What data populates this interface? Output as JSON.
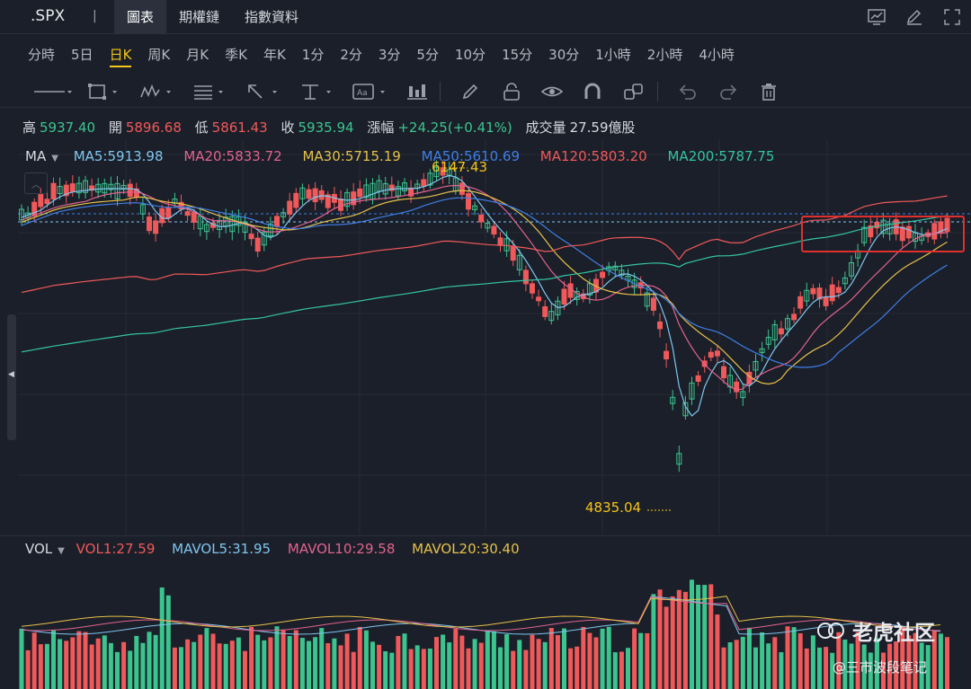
{
  "toolbar": {
    "symbol": ".SPX",
    "separator": "|",
    "tabs": [
      "圖表",
      "期權鏈",
      "指數資料"
    ],
    "active_tab": 0
  },
  "periods": {
    "items": [
      "分時",
      "5日",
      "日K",
      "周K",
      "月K",
      "季K",
      "年K",
      "1分",
      "2分",
      "3分",
      "5分",
      "10分",
      "15分",
      "30分",
      "1小時",
      "2小時",
      "4小時"
    ],
    "active": 2
  },
  "quote": {
    "high_label": "高",
    "high": "5937.40",
    "open_label": "開",
    "open": "5896.68",
    "low_label": "低",
    "low": "5861.43",
    "close_label": "收",
    "close": "5935.94",
    "change_label": "漲幅",
    "change": "+24.25(+0.41%)",
    "volume_label": "成交量",
    "volume": "27.59億股"
  },
  "ma_legend": {
    "label": "MA",
    "items": [
      {
        "text": "MA5:5913.98",
        "color": "#7fc6f0"
      },
      {
        "text": "MA20:5833.72",
        "color": "#e2638f"
      },
      {
        "text": "MA30:5715.19",
        "color": "#e6c14a"
      },
      {
        "text": "MA50:5610.69",
        "color": "#3f7fe6"
      },
      {
        "text": "MA120:5803.20",
        "color": "#f0595a"
      },
      {
        "text": "MA200:5787.75",
        "color": "#34c4a3"
      }
    ]
  },
  "price_markers": {
    "high": "6147.43",
    "low": "4835.04"
  },
  "vol_legend": {
    "label": "VOL",
    "items": [
      {
        "text": "VOL1:27.59",
        "color": "#f0595a"
      },
      {
        "text": "MAVOL5:31.95",
        "color": "#7fc6f0"
      },
      {
        "text": "MAVOL10:29.58",
        "color": "#e2638f"
      },
      {
        "text": "MAVOL20:30.40",
        "color": "#e6c14a"
      }
    ]
  },
  "watermark": {
    "brand": "老虎社区",
    "author": "@三市波段笔记"
  },
  "colors": {
    "up": "#3cc48f",
    "down": "#f0595a",
    "bg": "#1b1f29",
    "highlight": "#e0302e"
  }
}
